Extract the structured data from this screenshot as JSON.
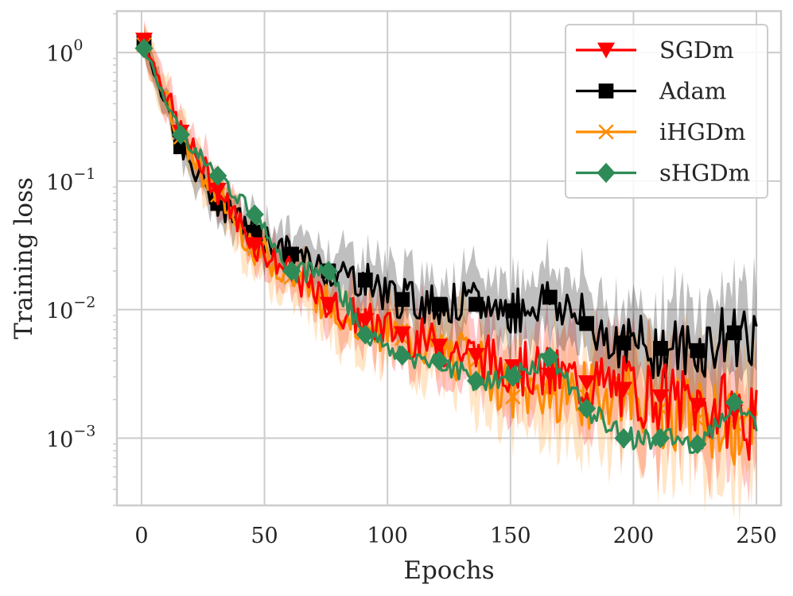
{
  "chart_data": {
    "type": "line",
    "xlabel": "Epochs",
    "ylabel": "Training loss",
    "xlim": [
      -10,
      260
    ],
    "ylim": [
      0.0003,
      2.1
    ],
    "yscale": "log",
    "grid": true,
    "legend_position": "top-right",
    "x_ticks": [
      {
        "value": 0,
        "label": "0"
      },
      {
        "value": 50,
        "label": "50"
      },
      {
        "value": 100,
        "label": "100"
      },
      {
        "value": 150,
        "label": "150"
      },
      {
        "value": 200,
        "label": "200"
      },
      {
        "value": 250,
        "label": "250"
      }
    ],
    "y_ticks": [
      {
        "value": 1,
        "base": "10",
        "exp": "0"
      },
      {
        "value": 0.1,
        "base": "10",
        "exp": "−1"
      },
      {
        "value": 0.01,
        "base": "10",
        "exp": "−2"
      },
      {
        "value": 0.001,
        "base": "10",
        "exp": "−3"
      }
    ],
    "series": [
      {
        "name": "SGDm",
        "color": "#ff0000",
        "marker": "triangle-down",
        "x": [
          1,
          16,
          31,
          46,
          61,
          76,
          91,
          106,
          121,
          136,
          151,
          166,
          181,
          196,
          211,
          226,
          241,
          250
        ],
        "values": [
          1.25,
          0.24,
          0.085,
          0.032,
          0.019,
          0.011,
          0.0082,
          0.0065,
          0.0052,
          0.0044,
          0.0036,
          0.0031,
          0.0027,
          0.0024,
          0.0021,
          0.0018,
          0.0016,
          0.0012
        ],
        "band": [
          0.2,
          0.2,
          0.2,
          0.2,
          0.22,
          0.25,
          0.28,
          0.3,
          0.32,
          0.35,
          0.38,
          0.4,
          0.45,
          0.48,
          0.5,
          0.5,
          0.55,
          0.55
        ]
      },
      {
        "name": "Adam",
        "color": "#000000",
        "marker": "square",
        "x": [
          1,
          16,
          31,
          46,
          61,
          76,
          91,
          106,
          121,
          136,
          151,
          166,
          181,
          196,
          211,
          226,
          241,
          250
        ],
        "values": [
          1.2,
          0.185,
          0.067,
          0.04,
          0.027,
          0.02,
          0.017,
          0.012,
          0.011,
          0.011,
          0.0098,
          0.0125,
          0.0078,
          0.0055,
          0.005,
          0.0048,
          0.0066,
          0.0068
        ],
        "band": [
          0.15,
          0.15,
          0.2,
          0.2,
          0.22,
          0.25,
          0.28,
          0.3,
          0.3,
          0.32,
          0.33,
          0.35,
          0.38,
          0.4,
          0.45,
          0.45,
          0.5,
          0.5
        ]
      },
      {
        "name": "iHGDm",
        "color": "#ff8c00",
        "marker": "x",
        "x": [
          1,
          16,
          31,
          46,
          61,
          76,
          91,
          106,
          121,
          136,
          151,
          166,
          181,
          196,
          211,
          226,
          241,
          250
        ],
        "values": [
          1.15,
          0.22,
          0.078,
          0.03,
          0.018,
          0.011,
          0.0078,
          0.006,
          0.0048,
          0.004,
          0.0021,
          0.0024,
          0.0021,
          0.0024,
          0.0017,
          0.0014,
          0.0013,
          0.00095
        ],
        "band": [
          0.2,
          0.2,
          0.22,
          0.25,
          0.25,
          0.28,
          0.3,
          0.32,
          0.35,
          0.38,
          0.4,
          0.45,
          0.48,
          0.5,
          0.55,
          0.55,
          0.6,
          0.6
        ]
      },
      {
        "name": "sHGDm",
        "color": "#2e8b57",
        "marker": "diamond",
        "x": [
          1,
          16,
          31,
          46,
          61,
          76,
          91,
          106,
          121,
          136,
          151,
          166,
          181,
          196,
          211,
          226,
          241,
          250
        ],
        "values": [
          1.08,
          0.23,
          0.11,
          0.055,
          0.02,
          0.02,
          0.0064,
          0.0044,
          0.004,
          0.0028,
          0.003,
          0.0043,
          0.0017,
          0.001,
          0.001,
          0.0009,
          0.0019,
          0.0012
        ],
        "band": [
          0.1,
          0.1,
          0.1,
          0.1,
          0.1,
          0.1,
          0.1,
          0.1,
          0.1,
          0.1,
          0.1,
          0.1,
          0.1,
          0.1,
          0.1,
          0.1,
          0.1,
          0.1
        ]
      }
    ]
  }
}
